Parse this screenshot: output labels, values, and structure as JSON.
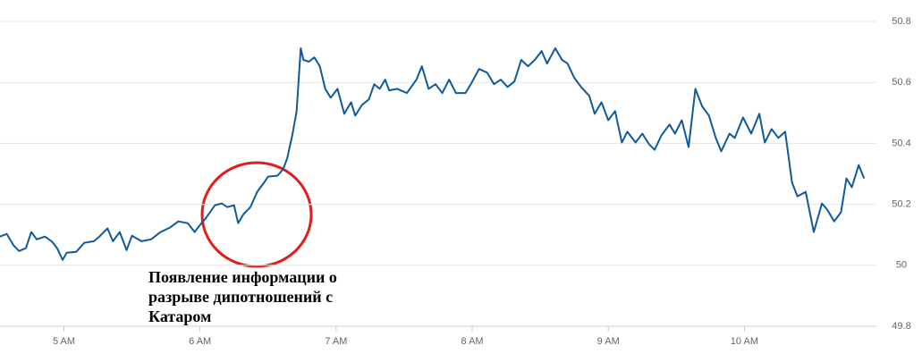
{
  "chart_data": {
    "type": "line",
    "x": [
      4.53,
      4.58,
      4.63,
      4.67,
      4.72,
      4.76,
      4.8,
      4.86,
      4.91,
      4.95,
      4.99,
      5.02,
      5.09,
      5.15,
      5.22,
      5.26,
      5.32,
      5.36,
      5.41,
      5.46,
      5.5,
      5.57,
      5.64,
      5.71,
      5.78,
      5.84,
      5.91,
      5.96,
      6.01,
      6.04,
      6.11,
      6.16,
      6.2,
      6.25,
      6.28,
      6.32,
      6.37,
      6.42,
      6.47,
      6.5,
      6.57,
      6.61,
      6.64,
      6.68,
      6.71,
      6.74,
      6.76,
      6.8,
      6.84,
      6.88,
      6.92,
      6.96,
      7.01,
      7.06,
      7.11,
      7.14,
      7.19,
      7.24,
      7.28,
      7.32,
      7.36,
      7.39,
      7.45,
      7.52,
      7.59,
      7.63,
      7.68,
      7.73,
      7.78,
      7.83,
      7.88,
      7.95,
      7.99,
      8.05,
      8.11,
      8.16,
      8.21,
      8.26,
      8.31,
      8.36,
      8.41,
      8.46,
      8.51,
      8.55,
      8.61,
      8.66,
      8.7,
      8.75,
      8.8,
      8.86,
      8.9,
      8.95,
      9.0,
      9.05,
      9.1,
      9.14,
      9.2,
      9.25,
      9.3,
      9.34,
      9.39,
      9.45,
      9.49,
      9.54,
      9.59,
      9.64,
      9.69,
      9.74,
      9.79,
      9.83,
      9.89,
      9.93,
      9.99,
      10.05,
      10.11,
      10.15,
      10.2,
      10.25,
      10.3,
      10.35,
      10.39,
      10.45,
      10.51,
      10.57,
      10.61,
      10.66,
      10.71,
      10.75,
      10.79,
      10.84,
      10.88
    ],
    "series": [
      {
        "color": "#0e5a9c",
        "values": [
          50.094,
          50.103,
          50.065,
          50.047,
          50.056,
          50.109,
          50.085,
          50.094,
          50.079,
          50.056,
          50.018,
          50.041,
          50.044,
          50.074,
          50.079,
          50.094,
          50.121,
          50.079,
          50.109,
          50.05,
          50.097,
          50.079,
          50.085,
          50.109,
          50.124,
          50.144,
          50.138,
          50.109,
          50.138,
          50.153,
          50.197,
          50.203,
          50.191,
          50.197,
          50.138,
          50.168,
          50.191,
          50.241,
          50.271,
          50.291,
          50.294,
          50.315,
          50.35,
          50.432,
          50.506,
          50.712,
          50.674,
          50.668,
          50.682,
          50.653,
          50.579,
          50.55,
          50.579,
          50.497,
          50.535,
          50.491,
          50.526,
          50.544,
          50.594,
          50.579,
          50.609,
          50.574,
          50.579,
          50.565,
          50.609,
          50.653,
          50.579,
          50.594,
          50.565,
          50.609,
          50.565,
          50.565,
          50.594,
          50.644,
          50.632,
          50.594,
          50.609,
          50.585,
          50.603,
          50.674,
          50.653,
          50.674,
          50.703,
          50.662,
          50.712,
          50.674,
          50.662,
          50.615,
          50.585,
          50.556,
          50.497,
          50.535,
          50.476,
          50.506,
          50.403,
          50.438,
          50.403,
          50.432,
          50.397,
          50.379,
          50.426,
          50.462,
          50.432,
          50.476,
          50.388,
          50.579,
          50.521,
          50.491,
          50.418,
          50.374,
          50.432,
          50.418,
          50.485,
          50.432,
          50.497,
          50.403,
          50.447,
          50.418,
          50.438,
          50.271,
          50.226,
          50.241,
          50.109,
          50.203,
          50.182,
          50.144,
          50.174,
          50.285,
          50.256,
          50.329,
          50.285
        ]
      }
    ],
    "xlim": [
      4.53,
      10.97
    ],
    "xticks": [
      {
        "value": 5,
        "label": "5 AM"
      },
      {
        "value": 6,
        "label": "6 AM"
      },
      {
        "value": 7,
        "label": "7 AM"
      },
      {
        "value": 8,
        "label": "8 AM"
      },
      {
        "value": 9,
        "label": "9 AM"
      },
      {
        "value": 10,
        "label": "10 AM"
      }
    ],
    "ylim": [
      49.8,
      50.8
    ],
    "yticks": [
      49.8,
      50,
      50.2,
      50.4,
      50.6,
      50.8
    ],
    "grid": true,
    "annotation": [
      "Появление информации о",
      "разрыве дипотношений с",
      "Катаром"
    ]
  }
}
